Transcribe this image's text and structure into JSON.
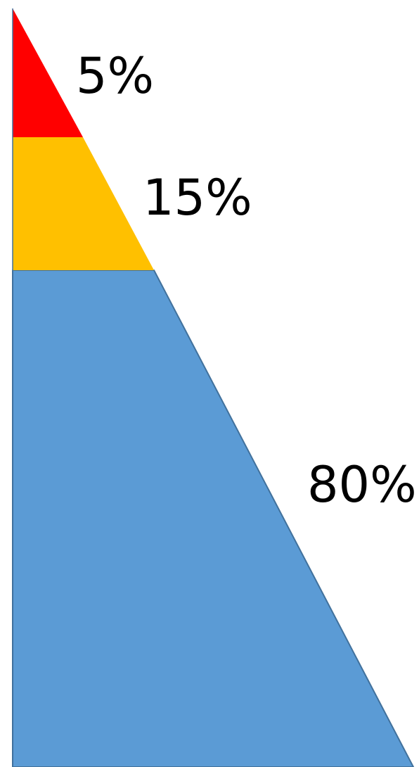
{
  "pyramid": {
    "tiers": [
      {
        "label": "5%",
        "value": 5,
        "color": "#ff0000"
      },
      {
        "label": "15%",
        "value": 15,
        "color": "#ffc000"
      },
      {
        "label": "80%",
        "value": 80,
        "color": "#5b9bd5"
      }
    ],
    "outline_color": "#41719c"
  }
}
